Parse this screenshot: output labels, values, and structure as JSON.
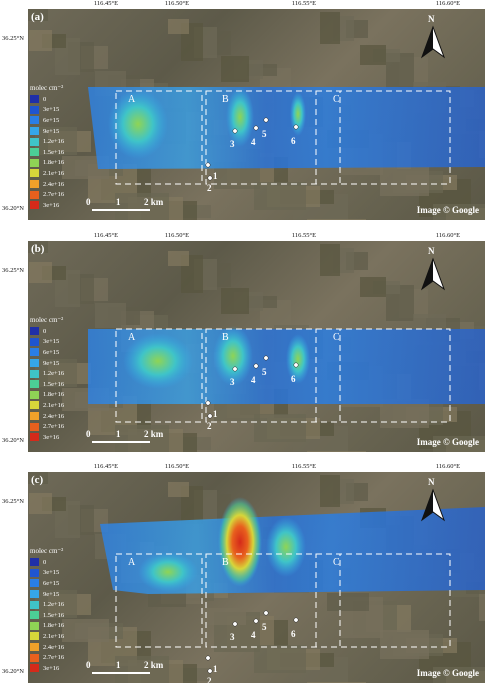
{
  "longitude_ticks": [
    "116.45°E",
    "116.50°E",
    "116.55°E",
    "116.60°E"
  ],
  "latitude_ticks": [
    "36.25°N",
    "36.20°N"
  ],
  "legend": {
    "title": "molec cm⁻²",
    "entries": [
      {
        "label": "0",
        "color": "#1f2fa8"
      },
      {
        "label": "3e+15",
        "color": "#1f55d0"
      },
      {
        "label": "6e+15",
        "color": "#2a7ee6"
      },
      {
        "label": "9e+15",
        "color": "#35a6e8"
      },
      {
        "label": "1.2e+16",
        "color": "#3fc4c8"
      },
      {
        "label": "1.5e+16",
        "color": "#4ccf96"
      },
      {
        "label": "1.8e+16",
        "color": "#8fd455"
      },
      {
        "label": "2.1e+16",
        "color": "#d7d63a"
      },
      {
        "label": "2.4e+16",
        "color": "#f0a12a"
      },
      {
        "label": "2.7e+16",
        "color": "#e8601e"
      },
      {
        "label": "3e+16",
        "color": "#d42a1a"
      }
    ]
  },
  "north_label": "N",
  "scale_bar": {
    "start": "0",
    "mid": "1",
    "end": "2 km"
  },
  "copyright": "Image © Google",
  "regions": [
    "A",
    "B",
    "C"
  ],
  "sites": [
    "1",
    "2",
    "3",
    "4",
    "5",
    "6"
  ],
  "panels": [
    {
      "label": "(a)"
    },
    {
      "label": "(b)"
    },
    {
      "label": "(c)"
    }
  ]
}
